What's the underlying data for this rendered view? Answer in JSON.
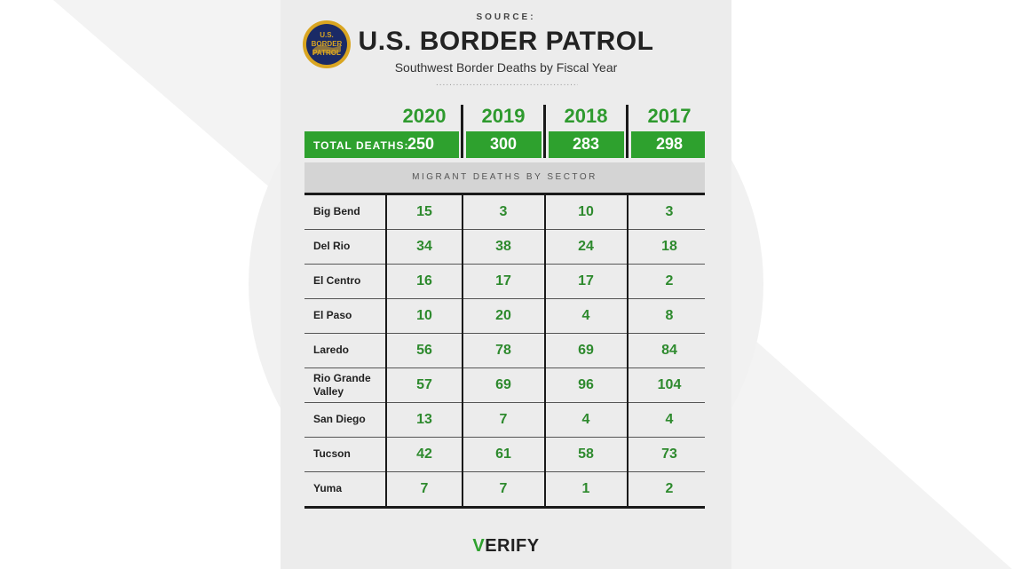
{
  "header": {
    "source_label": "SOURCE:",
    "title": "U.S. BORDER PATROL",
    "subtitle": "Southwest Border Deaths by Fiscal Year",
    "logo_text_line1": "U.S.",
    "logo_text_line2": "BORDER",
    "logo_text_line3": "PATROL"
  },
  "totals": {
    "label": "TOTAL DEATHS:"
  },
  "sector_header": "MIGRANT DEATHS BY SECTOR",
  "footer": {
    "brand_check": "V",
    "brand_rest": "ERIFY"
  },
  "colors": {
    "accent_green": "#2ea12e",
    "number_green": "#2e8a2e",
    "card_bg": "#ececec"
  },
  "chart_data": {
    "type": "table",
    "title": "U.S. BORDER PATROL",
    "subtitle": "Southwest Border Deaths by Fiscal Year",
    "columns": [
      "2020",
      "2019",
      "2018",
      "2017"
    ],
    "totals": [
      250,
      300,
      283,
      298
    ],
    "rows": [
      {
        "sector": "Big Bend",
        "values": [
          15,
          3,
          10,
          3
        ]
      },
      {
        "sector": "Del Rio",
        "values": [
          34,
          38,
          24,
          18
        ]
      },
      {
        "sector": "El Centro",
        "values": [
          16,
          17,
          17,
          2
        ]
      },
      {
        "sector": "El Paso",
        "values": [
          10,
          20,
          4,
          8
        ]
      },
      {
        "sector": "Laredo",
        "values": [
          56,
          78,
          69,
          84
        ]
      },
      {
        "sector": "Rio Grande Valley",
        "values": [
          57,
          69,
          96,
          104
        ]
      },
      {
        "sector": "San Diego",
        "values": [
          13,
          7,
          4,
          4
        ]
      },
      {
        "sector": "Tucson",
        "values": [
          42,
          61,
          58,
          73
        ]
      },
      {
        "sector": "Yuma",
        "values": [
          7,
          7,
          1,
          2
        ]
      }
    ]
  }
}
